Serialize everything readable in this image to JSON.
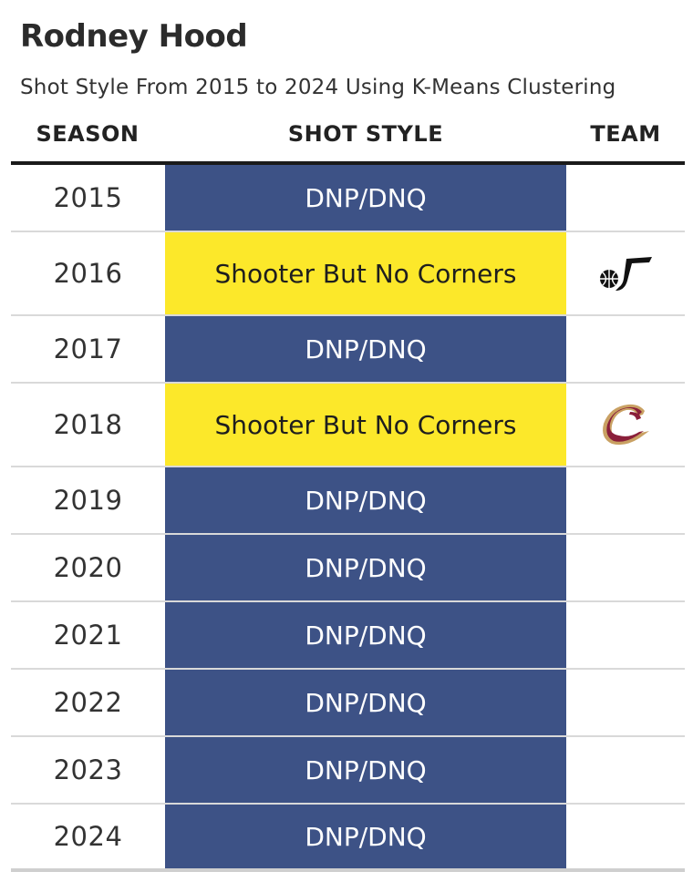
{
  "title": "Rodney Hood",
  "subtitle": "Shot Style From 2015 to 2024 Using K-Means Clustering",
  "headers": {
    "season": "SEASON",
    "shot_style": "SHOT STYLE",
    "team": "TEAM"
  },
  "colors": {
    "dnp": "#3d5286",
    "shooter": "#fce82a",
    "jazz_logo": "#111111",
    "cavs_wine": "#8a1f3a",
    "cavs_gold": "#c9a163"
  },
  "chart_data": {
    "type": "table",
    "title": "Rodney Hood",
    "subtitle": "Shot Style From 2015 to 2024 Using K-Means Clustering",
    "columns": [
      "SEASON",
      "SHOT STYLE",
      "TEAM"
    ],
    "rows": [
      {
        "season": "2015",
        "shot_style": "DNP/DNQ",
        "team_logo": ""
      },
      {
        "season": "2016",
        "shot_style": "Shooter But No Corners",
        "team_logo": "utah-jazz-logo"
      },
      {
        "season": "2017",
        "shot_style": "DNP/DNQ",
        "team_logo": ""
      },
      {
        "season": "2018",
        "shot_style": "Shooter But No Corners",
        "team_logo": "cleveland-cavaliers-logo"
      },
      {
        "season": "2019",
        "shot_style": "DNP/DNQ",
        "team_logo": ""
      },
      {
        "season": "2020",
        "shot_style": "DNP/DNQ",
        "team_logo": ""
      },
      {
        "season": "2021",
        "shot_style": "DNP/DNQ",
        "team_logo": ""
      },
      {
        "season": "2022",
        "shot_style": "DNP/DNQ",
        "team_logo": ""
      },
      {
        "season": "2023",
        "shot_style": "DNP/DNQ",
        "team_logo": ""
      },
      {
        "season": "2024",
        "shot_style": "DNP/DNQ",
        "team_logo": ""
      }
    ]
  }
}
